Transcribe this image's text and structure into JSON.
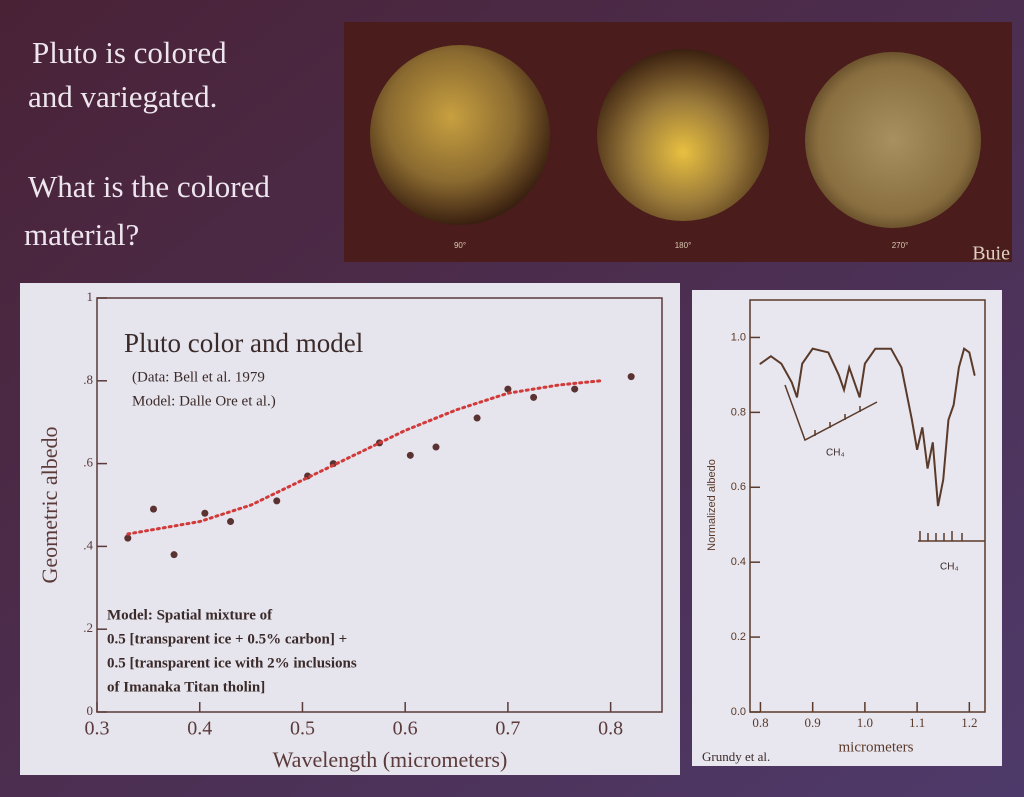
{
  "slide": {
    "text": [
      "Pluto is colored",
      "and variegated.",
      "What is the colored",
      "material?"
    ],
    "image_labels": [
      "90°",
      "180°",
      "270°"
    ],
    "credit": "Buie"
  },
  "chart_data": [
    {
      "type": "scatter",
      "title": "Pluto color and model",
      "annotations": [
        "(Data: Bell et al. 1979",
        "Model: Dalle Ore et al.)",
        "Model:  Spatial mixture of",
        "0.5 [transparent ice + 0.5% carbon] +",
        "0.5 [transparent ice with 2% inclusions",
        "of Imanaka Titan tholin]"
      ],
      "x_label": "Wavelength (micrometers)",
      "y_label": "Geometric albedo",
      "xlim": [
        0.3,
        0.85
      ],
      "xticks": [
        0.3,
        0.4,
        0.5,
        0.6,
        0.7,
        0.8
      ],
      "ylim": [
        0,
        1
      ],
      "yticks": [
        0,
        {
          "value": 0.2,
          "label": ".2"
        },
        {
          "value": 0.4,
          "label": ".4"
        },
        {
          "value": 0.6,
          "label": ".6"
        },
        {
          "value": 0.8,
          "label": ".8"
        },
        1
      ],
      "series": [
        {
          "name": "Data",
          "color": "#5a3232",
          "style": "points",
          "x": [
            0.33,
            0.355,
            0.375,
            0.405,
            0.43,
            0.475,
            0.505,
            0.53,
            0.575,
            0.605,
            0.63,
            0.67,
            0.7,
            0.725,
            0.765,
            0.82
          ],
          "values": [
            0.42,
            0.49,
            0.38,
            0.48,
            0.46,
            0.51,
            0.57,
            0.6,
            0.65,
            0.62,
            0.64,
            0.71,
            0.78,
            0.76,
            0.78,
            0.81
          ]
        },
        {
          "name": "Model",
          "color": "#d23a3a",
          "style": "dotted",
          "x": [
            0.33,
            0.4,
            0.45,
            0.5,
            0.55,
            0.6,
            0.65,
            0.7,
            0.75,
            0.79
          ],
          "values": [
            0.43,
            0.46,
            0.5,
            0.56,
            0.62,
            0.68,
            0.73,
            0.77,
            0.79,
            0.8
          ]
        }
      ]
    },
    {
      "type": "line",
      "x_label": "micrometers",
      "y_label": "Normalized albedo",
      "annotations": [
        "CH₄",
        "CH₄",
        "Grundy et al."
      ],
      "xlim": [
        0.78,
        1.23
      ],
      "xticks": [
        0.8,
        0.9,
        {
          "value": 1.0,
          "label": "1.0"
        },
        1.1,
        1.2
      ],
      "ylim": [
        0,
        1.1
      ],
      "yticks": [
        {
          "value": 0,
          "label": "0.0"
        },
        0.2,
        0.4,
        0.6,
        0.8,
        {
          "value": 1.0,
          "label": "1.0"
        }
      ],
      "series": [
        {
          "name": "Spectrum",
          "color": "#5a3a2a",
          "style": "solid",
          "x": [
            0.8,
            0.82,
            0.84,
            0.86,
            0.87,
            0.88,
            0.9,
            0.93,
            0.95,
            0.96,
            0.97,
            0.98,
            0.99,
            1.0,
            1.02,
            1.05,
            1.07,
            1.09,
            1.1,
            1.11,
            1.12,
            1.13,
            1.14,
            1.15,
            1.16,
            1.17,
            1.18,
            1.19,
            1.2,
            1.21
          ],
          "values": [
            0.93,
            0.95,
            0.93,
            0.88,
            0.84,
            0.93,
            0.97,
            0.96,
            0.9,
            0.86,
            0.92,
            0.88,
            0.84,
            0.93,
            0.97,
            0.97,
            0.92,
            0.78,
            0.7,
            0.76,
            0.65,
            0.72,
            0.55,
            0.62,
            0.78,
            0.82,
            0.92,
            0.97,
            0.96,
            0.9
          ]
        }
      ]
    }
  ]
}
